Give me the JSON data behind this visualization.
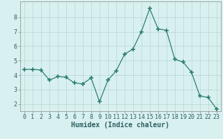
{
  "x": [
    0,
    1,
    2,
    3,
    4,
    5,
    6,
    7,
    8,
    9,
    10,
    11,
    12,
    13,
    14,
    15,
    16,
    17,
    18,
    19,
    20,
    21,
    22,
    23
  ],
  "y": [
    4.4,
    4.4,
    4.35,
    3.65,
    3.9,
    3.85,
    3.45,
    3.4,
    3.8,
    2.15,
    3.65,
    4.3,
    5.45,
    5.8,
    7.0,
    8.6,
    7.2,
    7.1,
    5.1,
    4.9,
    4.2,
    2.55,
    2.45,
    1.65
  ],
  "line_color": "#2d7f6e",
  "marker": "+",
  "marker_size": 4,
  "marker_linewidth": 1.2,
  "bg_color": "#d8f0f0",
  "grid_color": "#b8d4d4",
  "xlabel": "Humidex (Indice chaleur)",
  "xlabel_fontsize": 7,
  "tick_fontsize": 6,
  "ylim": [
    1.5,
    9.1
  ],
  "xlim": [
    -0.5,
    23.5
  ],
  "yticks": [
    2,
    3,
    4,
    5,
    6,
    7,
    8
  ],
  "xticks": [
    0,
    1,
    2,
    3,
    4,
    5,
    6,
    7,
    8,
    9,
    10,
    11,
    12,
    13,
    14,
    15,
    16,
    17,
    18,
    19,
    20,
    21,
    22,
    23
  ]
}
